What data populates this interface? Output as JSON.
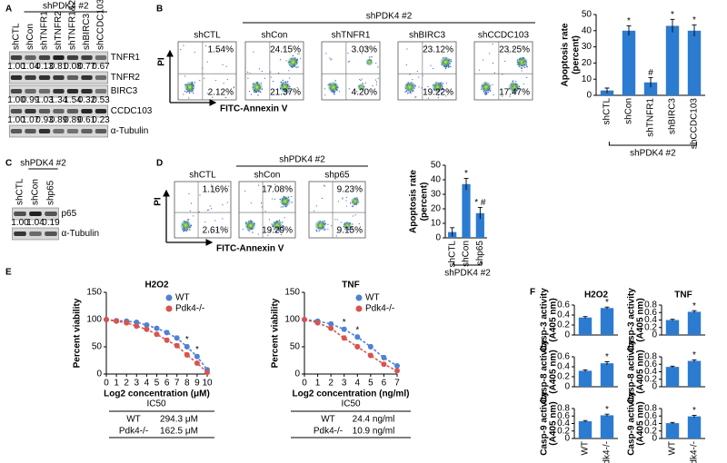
{
  "panel_labels": [
    "A",
    "B",
    "C",
    "D",
    "E",
    "F"
  ],
  "blot_a": {
    "group": "shPDK4 #2",
    "lanes": [
      "shCTL",
      "shCon",
      "shTNFR1",
      "shTNFR2",
      "shTNFR1&2",
      "shBIRC3",
      "shCCDC103"
    ],
    "rows": [
      {
        "name": "TNFR1",
        "quant": [
          "1.00",
          "1.04",
          "0.13",
          "0.81",
          "0.08",
          "0.77",
          "0.67"
        ]
      },
      {
        "name": "TNFR2"
      },
      {
        "name": "BIRC3",
        "quant": [
          "1.00",
          "0.99",
          "1.03",
          "1.34",
          "1.54",
          "0.32",
          "0.53"
        ]
      },
      {
        "name": "CCDC103",
        "quant": [
          "1.00",
          "1.07",
          "0.93",
          "0.89",
          "0.89",
          "0.61",
          "0.23"
        ]
      },
      {
        "name": "α-Tubulin"
      }
    ]
  },
  "blot_c": {
    "group": "shPDK4 #2",
    "lanes": [
      "shCTL",
      "shCon",
      "shp65"
    ],
    "rows": [
      {
        "name": "p65",
        "quant": [
          "1.00",
          "1.04",
          "0.19"
        ]
      },
      {
        "name": "α-Tubulin"
      }
    ]
  },
  "flow_b": {
    "group": "shPDK4 #2",
    "y_axis": "PI",
    "x_axis": "FITC-Annexin V",
    "plots": [
      {
        "title": "shCTL",
        "upper_right": "1.54%",
        "lower_right": "2.12%"
      },
      {
        "title": "shCon",
        "upper_right": "24.15%",
        "lower_right": "21.37%"
      },
      {
        "title": "shTNFR1",
        "upper_right": "3.03%",
        "lower_right": "4.20%"
      },
      {
        "title": "shBIRC3",
        "upper_right": "23.12%",
        "lower_right": "19.22%"
      },
      {
        "title": "shCCDC103",
        "upper_right": "23.25%",
        "lower_right": "17.47%"
      }
    ]
  },
  "flow_d": {
    "group": "shPDK4 #2",
    "y_axis": "PI",
    "x_axis": "FITC-Annexin V",
    "plots": [
      {
        "title": "shCTL",
        "upper_right": "1.16%",
        "lower_right": "2.61%"
      },
      {
        "title": "shCon",
        "upper_right": "17.08%",
        "lower_right": "19.29%"
      },
      {
        "title": "shp65",
        "upper_right": "9.23%",
        "lower_right": "9.15%"
      }
    ]
  },
  "tables": [
    {
      "header": "IC50",
      "rows": [
        [
          "WT",
          "294.3 μM"
        ],
        [
          "Pdk4-/-",
          "162.5 μM"
        ]
      ]
    },
    {
      "header": "IC50",
      "rows": [
        [
          "WT",
          "24.4 ng/ml"
        ],
        [
          "Pdk4-/-",
          "10.9 ng/ml"
        ]
      ]
    }
  ],
  "chart_data": [
    {
      "type": "bar",
      "ylabel": [
        "Apoptosis rate",
        "(percent)"
      ],
      "categories": [
        "shCTL",
        "shCon",
        "shTNFR1",
        "shBIRC3",
        "shCCDC103"
      ],
      "values": [
        3,
        40,
        8,
        43,
        40
      ],
      "errors": [
        1.5,
        3,
        3,
        4,
        3.5
      ],
      "markers": [
        null,
        "*",
        "#",
        "*",
        "*"
      ],
      "group_label": "shPDK4 #2",
      "color": "#2b7bd0",
      "ylim": [
        0,
        50
      ],
      "yticks": [
        0,
        10,
        20,
        30,
        40,
        50
      ]
    },
    {
      "type": "bar",
      "ylabel": [
        "Apoptosis rate",
        "(percent)"
      ],
      "categories": [
        "shCTL",
        "shCon",
        "shp65"
      ],
      "values": [
        4,
        37,
        17
      ],
      "errors": [
        3,
        4,
        4
      ],
      "markers": [
        null,
        "*",
        "* #"
      ],
      "group_label": "shPDK4 #2",
      "color": "#2b7bd0",
      "ylim": [
        0,
        50
      ],
      "yticks": [
        0,
        10,
        20,
        30,
        40,
        50
      ]
    },
    {
      "type": "line",
      "title": "H2O2",
      "xlabel": "Log2 concentration (μM)",
      "ylabel": "Percent viability",
      "x": [
        0,
        1,
        2,
        3,
        4,
        5,
        6,
        7,
        8,
        9,
        10
      ],
      "series": [
        {
          "name": "WT",
          "color": "#4f81d4",
          "values": [
            100,
            98,
            97,
            95,
            90,
            84,
            76,
            66,
            50,
            32,
            8
          ],
          "errors": [
            2,
            2,
            3,
            3,
            3,
            3,
            4,
            4,
            4,
            4,
            3
          ]
        },
        {
          "name": "Pdk4-/-",
          "color": "#d9534f",
          "values": [
            100,
            97,
            94,
            88,
            82,
            73,
            62,
            52,
            35,
            20,
            3
          ],
          "errors": [
            2,
            2,
            3,
            3,
            3,
            3,
            4,
            4,
            4,
            3,
            2
          ]
        }
      ],
      "markers": [
        null,
        null,
        null,
        null,
        null,
        null,
        null,
        null,
        "*",
        "*",
        null
      ],
      "legend": "upper right",
      "xlim": [
        0,
        10
      ],
      "xticks": [
        0,
        1,
        2,
        3,
        4,
        5,
        6,
        7,
        8,
        9,
        10
      ],
      "ylim": [
        0,
        150
      ],
      "yticks": [
        0,
        50,
        100,
        150
      ]
    },
    {
      "type": "line",
      "title": "TNF",
      "xlabel": "Log2 concentration (ng/ml)",
      "ylabel": "Percent viability",
      "x": [
        0,
        1,
        2,
        3,
        4,
        5,
        6,
        7
      ],
      "series": [
        {
          "name": "WT",
          "color": "#4f81d4",
          "values": [
            100,
            97,
            92,
            82,
            68,
            50,
            30,
            15
          ],
          "errors": [
            2,
            3,
            3,
            4,
            4,
            4,
            4,
            3
          ]
        },
        {
          "name": "Pdk4-/-",
          "color": "#d9534f",
          "values": [
            100,
            94,
            84,
            66,
            50,
            34,
            18,
            6
          ],
          "errors": [
            2,
            3,
            3,
            4,
            4,
            4,
            3,
            2
          ]
        }
      ],
      "markers": [
        null,
        null,
        null,
        "*",
        "*",
        null,
        null,
        null
      ],
      "legend": "upper right",
      "xlim": [
        0,
        7
      ],
      "xticks": [
        0,
        1,
        2,
        3,
        4,
        5,
        6,
        7
      ],
      "ylim": [
        0,
        150
      ],
      "yticks": [
        0,
        50,
        100,
        150
      ]
    },
    {
      "type": "bar",
      "title": "H2O2",
      "ylabel": [
        "Casp-3 activity",
        "(A405 nm)"
      ],
      "categories": [
        null,
        null
      ],
      "values": [
        0.35,
        0.54
      ],
      "errors": [
        0.02,
        0.02
      ],
      "markers": [
        null,
        "*"
      ],
      "color": "#2b7bd0",
      "ylim": [
        0,
        0.6
      ],
      "yticks": [
        0,
        0.2,
        0.4,
        0.6
      ]
    },
    {
      "type": "bar",
      "ylabel": [
        "Casp-8 activity",
        "(A405 nm)"
      ],
      "categories": [
        null,
        null
      ],
      "values": [
        0.32,
        0.47
      ],
      "errors": [
        0.02,
        0.03
      ],
      "markers": [
        null,
        "*"
      ],
      "color": "#2b7bd0",
      "ylim": [
        0,
        0.6
      ],
      "yticks": [
        0,
        0.2,
        0.4,
        0.6
      ]
    },
    {
      "type": "bar",
      "ylabel": [
        "Casp-9 activity",
        "(A405 nm)"
      ],
      "categories": [
        "WT",
        "Pdk4-/-"
      ],
      "values": [
        0.46,
        0.62
      ],
      "errors": [
        0.02,
        0.03
      ],
      "markers": [
        null,
        "*"
      ],
      "color": "#2b7bd0",
      "ylim": [
        0,
        0.8
      ],
      "yticks": [
        0,
        0.2,
        0.4,
        0.6,
        0.8
      ]
    },
    {
      "type": "bar",
      "title": "TNF",
      "ylabel": [
        "Casp-3 activity",
        "(A405 nm)"
      ],
      "categories": [
        null,
        null
      ],
      "values": [
        0.4,
        0.62
      ],
      "errors": [
        0.02,
        0.03
      ],
      "markers": [
        null,
        "*"
      ],
      "color": "#2b7bd0",
      "ylim": [
        0,
        0.8
      ],
      "yticks": [
        0,
        0.2,
        0.4,
        0.6,
        0.8
      ]
    },
    {
      "type": "bar",
      "ylabel": [
        "Casp-8 activity",
        "(A405 nm)"
      ],
      "categories": [
        null,
        null
      ],
      "values": [
        0.53,
        0.69
      ],
      "errors": [
        0.02,
        0.03
      ],
      "markers": [
        null,
        "*"
      ],
      "color": "#2b7bd0",
      "ylim": [
        0,
        0.8
      ],
      "yticks": [
        0,
        0.2,
        0.4,
        0.6,
        0.8
      ]
    },
    {
      "type": "bar",
      "ylabel": [
        "Casp-9 activity",
        "(A405 nm)"
      ],
      "categories": [
        "WT",
        "Pdk4-/-"
      ],
      "values": [
        0.41,
        0.59
      ],
      "errors": [
        0.02,
        0.03
      ],
      "markers": [
        null,
        "*"
      ],
      "color": "#2b7bd0",
      "ylim": [
        0,
        0.8
      ],
      "yticks": [
        0,
        0.2,
        0.4,
        0.6,
        0.8
      ]
    }
  ]
}
